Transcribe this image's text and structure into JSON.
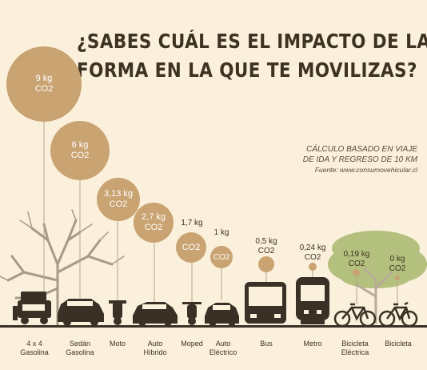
{
  "title": {
    "line1": "¿SABES CUÁL ES EL IMPACTO DE LA",
    "line2": "FORMA EN LA QUE TE MOVILIZAS?"
  },
  "note": {
    "line1": "CÁLCULO BASADO EN VIAJE",
    "line2": "DE IDA Y REGRESO DE 10 KM",
    "source": "Fuente: www.consumovehicular.cl"
  },
  "unit": "CO2",
  "vehicles": [
    {
      "value": "9 kg",
      "label1": "4 x 4",
      "label2": "Gasolina",
      "icon": "jeep-icon"
    },
    {
      "value": "6 kg",
      "label1": "Sedán",
      "label2": "Gasolina",
      "icon": "sedan-icon"
    },
    {
      "value": "3,13 kg",
      "label1": "Moto",
      "label2": "",
      "icon": "motorcycle-icon"
    },
    {
      "value": "2,7 kg",
      "label1": "Auto",
      "label2": "Híbrido",
      "icon": "hybrid-car-icon"
    },
    {
      "value": "1,7 kg",
      "label1": "Moped",
      "label2": "",
      "icon": "moped-icon"
    },
    {
      "value": "1 kg",
      "label1": "Auto",
      "label2": "Eléctrico",
      "icon": "electric-car-icon"
    },
    {
      "value": "0,5 kg",
      "label1": "Bus",
      "label2": "",
      "icon": "bus-icon"
    },
    {
      "value": "0,24 kg",
      "label1": "Metro",
      "label2": "",
      "icon": "metro-icon"
    },
    {
      "value": "0,19 kg",
      "label1": "Bicicleta",
      "label2": "Eléctrica",
      "icon": "ebike-icon"
    },
    {
      "value": "0 kg",
      "label1": "Bicicleta",
      "label2": "",
      "icon": "bicycle-icon"
    }
  ],
  "colors": {
    "background": "#fbf0dc",
    "bubble": "#c9a371",
    "ink": "#3e3322",
    "dry_tree": "#a89a88",
    "green_tree": "#b4c07e"
  }
}
